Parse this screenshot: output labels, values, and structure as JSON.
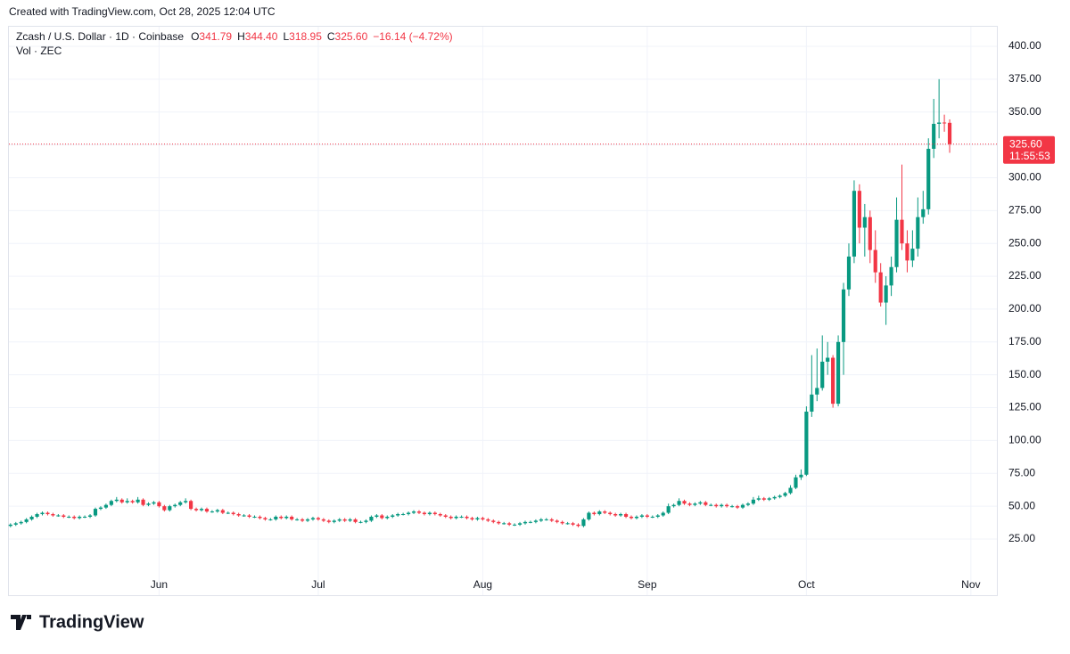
{
  "created": "Created with TradingView.com, Oct 28, 2025 12:04 UTC",
  "brand": "TradingView",
  "chart_data": {
    "type": "candlestick",
    "title": "Zcash / U.S. Dollar · 1D · Coinbase",
    "subtitle": "Vol · ZEC",
    "legend": [
      {
        "key": "O",
        "value": "341.79"
      },
      {
        "key": "H",
        "value": "344.40"
      },
      {
        "key": "L",
        "value": "318.95"
      },
      {
        "key": "C",
        "value": "325.60"
      }
    ],
    "change": "−16.14 (−4.72%)",
    "price_label": {
      "value": 325.6,
      "label": "325.60"
    },
    "countdown": "11:55:53",
    "up_color": "#089981",
    "down_color": "#f23645",
    "grid": true,
    "xlim": [
      -0.3,
      185.9
    ],
    "xticks": [
      {
        "value": 28,
        "label": "Jun"
      },
      {
        "value": 58,
        "label": "Jul"
      },
      {
        "value": 89,
        "label": "Aug"
      },
      {
        "value": 120,
        "label": "Sep"
      },
      {
        "value": 150,
        "label": "Oct"
      },
      {
        "value": 181,
        "label": "Nov"
      }
    ],
    "ylim": [
      -17.7,
      414.9
    ],
    "yticks": [
      {
        "value": 25,
        "label": "25.00"
      },
      {
        "value": 50,
        "label": "50.00"
      },
      {
        "value": 75,
        "label": "75.00"
      },
      {
        "value": 100,
        "label": "100.00"
      },
      {
        "value": 125,
        "label": "125.00"
      },
      {
        "value": 150,
        "label": "150.00"
      },
      {
        "value": 175,
        "label": "175.00"
      },
      {
        "value": 200,
        "label": "200.00"
      },
      {
        "value": 225,
        "label": "225.00"
      },
      {
        "value": 250,
        "label": "250.00"
      },
      {
        "value": 275,
        "label": "275.00"
      },
      {
        "value": 300,
        "label": "300.00"
      },
      {
        "value": 325,
        "label": "325.00"
      },
      {
        "value": 350,
        "label": "350.00"
      },
      {
        "value": 375,
        "label": "375.00"
      },
      {
        "value": 400,
        "label": "400.00"
      }
    ],
    "ohlc": [
      [
        35,
        37,
        34,
        36
      ],
      [
        36,
        38,
        35,
        37
      ],
      [
        37,
        39,
        36,
        38
      ],
      [
        38,
        41,
        37,
        40
      ],
      [
        40,
        43,
        39,
        42
      ],
      [
        42,
        45,
        41,
        44
      ],
      [
        44,
        46,
        43,
        45
      ],
      [
        45,
        46,
        43,
        44
      ],
      [
        44,
        45,
        42,
        43
      ],
      [
        43,
        44,
        42,
        43
      ],
      [
        43,
        44,
        41,
        42
      ],
      [
        42,
        43,
        41,
        42
      ],
      [
        42,
        43,
        40,
        41
      ],
      [
        41,
        43,
        40,
        42
      ],
      [
        42,
        43,
        41,
        42
      ],
      [
        42,
        44,
        41,
        43
      ],
      [
        43,
        49,
        42,
        48
      ],
      [
        48,
        50,
        47,
        49
      ],
      [
        49,
        52,
        48,
        51
      ],
      [
        51,
        55,
        50,
        54
      ],
      [
        54,
        57,
        53,
        55
      ],
      [
        55,
        56,
        52,
        53
      ],
      [
        53,
        56,
        52,
        54
      ],
      [
        54,
        55,
        52,
        53
      ],
      [
        53,
        57,
        52,
        55
      ],
      [
        55,
        56,
        50,
        51
      ],
      [
        51,
        53,
        50,
        52
      ],
      [
        52,
        54,
        51,
        53
      ],
      [
        53,
        54,
        49,
        50
      ],
      [
        50,
        51,
        46,
        47
      ],
      [
        47,
        51,
        46,
        50
      ],
      [
        50,
        52,
        49,
        51
      ],
      [
        51,
        54,
        50,
        53
      ],
      [
        53,
        56,
        52,
        54
      ],
      [
        54,
        55,
        47,
        48
      ],
      [
        48,
        49,
        46,
        47
      ],
      [
        47,
        49,
        46,
        48
      ],
      [
        48,
        49,
        45,
        46
      ],
      [
        46,
        47,
        45,
        46
      ],
      [
        46,
        48,
        45,
        47
      ],
      [
        47,
        48,
        44,
        45
      ],
      [
        45,
        46,
        44,
        45
      ],
      [
        45,
        46,
        43,
        44
      ],
      [
        44,
        45,
        42,
        43
      ],
      [
        43,
        44,
        42,
        43
      ],
      [
        43,
        44,
        41,
        42
      ],
      [
        42,
        43,
        41,
        42
      ],
      [
        42,
        43,
        40,
        41
      ],
      [
        41,
        42,
        39,
        40
      ],
      [
        40,
        41,
        39,
        40
      ],
      [
        40,
        43,
        39,
        42
      ],
      [
        42,
        43,
        40,
        41
      ],
      [
        41,
        43,
        40,
        42
      ],
      [
        42,
        43,
        39,
        40
      ],
      [
        40,
        41,
        39,
        40
      ],
      [
        40,
        41,
        38,
        39
      ],
      [
        39,
        41,
        38,
        40
      ],
      [
        40,
        42,
        39,
        41
      ],
      [
        41,
        42,
        39,
        40
      ],
      [
        40,
        41,
        38,
        39
      ],
      [
        39,
        40,
        37,
        38
      ],
      [
        38,
        40,
        37,
        39
      ],
      [
        39,
        41,
        38,
        40
      ],
      [
        40,
        41,
        38,
        39
      ],
      [
        39,
        41,
        38,
        40
      ],
      [
        40,
        41,
        37,
        38
      ],
      [
        38,
        39,
        37,
        38
      ],
      [
        38,
        40,
        37,
        39
      ],
      [
        39,
        43,
        38,
        42
      ],
      [
        42,
        44,
        41,
        43
      ],
      [
        43,
        44,
        40,
        41
      ],
      [
        41,
        43,
        40,
        42
      ],
      [
        42,
        44,
        41,
        43
      ],
      [
        43,
        45,
        42,
        44
      ],
      [
        44,
        45,
        43,
        44
      ],
      [
        44,
        46,
        43,
        45
      ],
      [
        45,
        47,
        44,
        46
      ],
      [
        46,
        47,
        44,
        45
      ],
      [
        45,
        46,
        43,
        44
      ],
      [
        44,
        46,
        43,
        45
      ],
      [
        45,
        46,
        43,
        44
      ],
      [
        44,
        45,
        42,
        43
      ],
      [
        43,
        44,
        41,
        42
      ],
      [
        42,
        43,
        40,
        41
      ],
      [
        41,
        43,
        40,
        42
      ],
      [
        42,
        43,
        41,
        42
      ],
      [
        42,
        43,
        40,
        41
      ],
      [
        41,
        42,
        39,
        40
      ],
      [
        40,
        42,
        39,
        41
      ],
      [
        41,
        42,
        39,
        40
      ],
      [
        40,
        41,
        38,
        39
      ],
      [
        39,
        40,
        37,
        38
      ],
      [
        38,
        39,
        36,
        37
      ],
      [
        37,
        38,
        36,
        37
      ],
      [
        37,
        38,
        35,
        36
      ],
      [
        36,
        37,
        35,
        36
      ],
      [
        36,
        38,
        35,
        37
      ],
      [
        37,
        39,
        36,
        38
      ],
      [
        38,
        39,
        37,
        38
      ],
      [
        38,
        40,
        37,
        39
      ],
      [
        39,
        41,
        38,
        40
      ],
      [
        40,
        41,
        39,
        40
      ],
      [
        40,
        41,
        38,
        39
      ],
      [
        39,
        40,
        37,
        38
      ],
      [
        38,
        39,
        36,
        37
      ],
      [
        37,
        38,
        36,
        37
      ],
      [
        37,
        38,
        35,
        36
      ],
      [
        36,
        37,
        34,
        35
      ],
      [
        35,
        41,
        34,
        40
      ],
      [
        40,
        46,
        39,
        45
      ],
      [
        45,
        46,
        43,
        44
      ],
      [
        44,
        47,
        43,
        46
      ],
      [
        46,
        47,
        44,
        45
      ],
      [
        45,
        46,
        43,
        44
      ],
      [
        44,
        45,
        42,
        43
      ],
      [
        43,
        45,
        42,
        44
      ],
      [
        44,
        45,
        41,
        42
      ],
      [
        42,
        43,
        40,
        41
      ],
      [
        41,
        43,
        40,
        42
      ],
      [
        42,
        44,
        41,
        43
      ],
      [
        43,
        44,
        41,
        42
      ],
      [
        42,
        43,
        41,
        42
      ],
      [
        42,
        44,
        41,
        43
      ],
      [
        43,
        46,
        42,
        45
      ],
      [
        45,
        52,
        44,
        50
      ],
      [
        50,
        52,
        49,
        51
      ],
      [
        51,
        56,
        50,
        54
      ],
      [
        54,
        55,
        51,
        52
      ],
      [
        52,
        53,
        50,
        51
      ],
      [
        51,
        53,
        50,
        52
      ],
      [
        52,
        54,
        51,
        53
      ],
      [
        53,
        54,
        50,
        51
      ],
      [
        51,
        52,
        50,
        51
      ],
      [
        51,
        52,
        49,
        50
      ],
      [
        50,
        52,
        49,
        51
      ],
      [
        51,
        52,
        49,
        50
      ],
      [
        50,
        51,
        49,
        50
      ],
      [
        50,
        51,
        48,
        49
      ],
      [
        49,
        52,
        48,
        51
      ],
      [
        51,
        53,
        50,
        52
      ],
      [
        52,
        57,
        51,
        55
      ],
      [
        55,
        58,
        54,
        56
      ],
      [
        56,
        57,
        54,
        55
      ],
      [
        55,
        57,
        54,
        56
      ],
      [
        56,
        58,
        55,
        57
      ],
      [
        57,
        59,
        56,
        58
      ],
      [
        58,
        61,
        57,
        60
      ],
      [
        60,
        66,
        59,
        64
      ],
      [
        64,
        74,
        63,
        72
      ],
      [
        72,
        78,
        70,
        74
      ],
      [
        74,
        126,
        73,
        122
      ],
      [
        122,
        165,
        118,
        135
      ],
      [
        135,
        170,
        130,
        140
      ],
      [
        140,
        180,
        138,
        160
      ],
      [
        160,
        175,
        150,
        163
      ],
      [
        163,
        165,
        125,
        128
      ],
      [
        128,
        180,
        126,
        175
      ],
      [
        175,
        220,
        150,
        215
      ],
      [
        215,
        250,
        210,
        240
      ],
      [
        240,
        298,
        235,
        290
      ],
      [
        290,
        295,
        250,
        262
      ],
      [
        262,
        280,
        240,
        270
      ],
      [
        270,
        275,
        235,
        245
      ],
      [
        245,
        260,
        220,
        228
      ],
      [
        228,
        235,
        202,
        205
      ],
      [
        205,
        225,
        188,
        218
      ],
      [
        218,
        240,
        210,
        232
      ],
      [
        232,
        285,
        228,
        268
      ],
      [
        268,
        310,
        245,
        250
      ],
      [
        250,
        260,
        228,
        237
      ],
      [
        237,
        260,
        232,
        246
      ],
      [
        246,
        285,
        240,
        270
      ],
      [
        270,
        290,
        265,
        276
      ],
      [
        276,
        330,
        272,
        322
      ],
      [
        322,
        360,
        315,
        341
      ],
      [
        341,
        375,
        330,
        342
      ],
      [
        342,
        348,
        335,
        341.79
      ],
      [
        341.79,
        344.4,
        318.95,
        325.6
      ]
    ]
  }
}
